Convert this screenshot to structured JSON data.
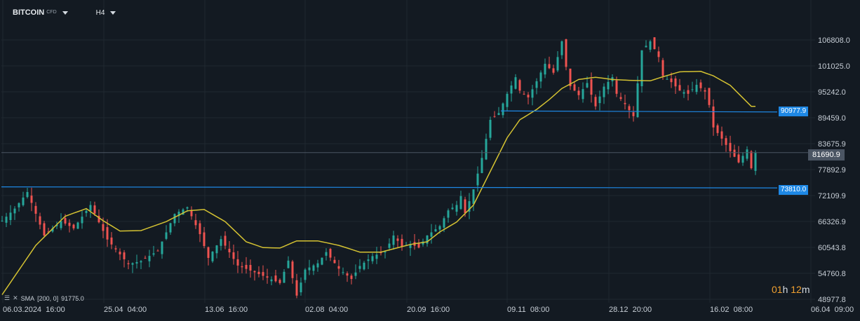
{
  "toolbar": {
    "symbol": "BITCOIN",
    "symbol_type": "CFD",
    "timeframe": "H4"
  },
  "indicator": {
    "label": "SMA",
    "params": "[200,  0]",
    "value": "91775.0"
  },
  "countdown": {
    "hours": "01",
    "hours_unit": "h",
    "minutes": "12",
    "minutes_unit": "m"
  },
  "horizontal_lines": [
    {
      "value": "90977.9",
      "color": "#1e88e5"
    },
    {
      "value": "73810.0",
      "color": "#1e88e5"
    }
  ],
  "current_price": {
    "value": "81690.9",
    "color": "#4b5563"
  },
  "colors": {
    "up": "#26a69a",
    "down": "#ef5350",
    "sma": "#d4c232",
    "background": "#131a22",
    "line": "#1e88e5"
  },
  "chart_data": {
    "type": "candlestick",
    "y_ticks": [
      "106808.0",
      "101025.0",
      "95242.0",
      "89459.0",
      "83675.9",
      "77892.9",
      "72109.9",
      "66326.9",
      "60543.8",
      "54760.8",
      "48977.8"
    ],
    "x_ticks": [
      "06.03.2024  16:00",
      "25.04  04:00",
      "13.06  16:00",
      "02.08  04:00",
      "20.09  16:00",
      "09.11  08:00",
      "28.12  20:00",
      "16.02  08:00",
      "06.04  09:00"
    ],
    "ylim": [
      48977.8,
      106808.0
    ],
    "price_path": [
      [
        0,
        66500
      ],
      [
        3,
        69200
      ],
      [
        6,
        72900
      ],
      [
        10,
        63200
      ],
      [
        14,
        66400
      ],
      [
        17,
        64800
      ],
      [
        21,
        70000
      ],
      [
        25,
        62300
      ],
      [
        30,
        56800
      ],
      [
        33,
        57500
      ],
      [
        37,
        59800
      ],
      [
        41,
        68000
      ],
      [
        44,
        69500
      ],
      [
        47,
        63500
      ],
      [
        49,
        58200
      ],
      [
        52,
        62400
      ],
      [
        56,
        56500
      ],
      [
        60,
        55000
      ],
      [
        63,
        53800
      ],
      [
        66,
        52600
      ],
      [
        68,
        57600
      ],
      [
        70,
        49800
      ],
      [
        72,
        55600
      ],
      [
        75,
        57000
      ],
      [
        77,
        59500
      ],
      [
        80,
        55800
      ],
      [
        83,
        53500
      ],
      [
        85,
        56400
      ],
      [
        88,
        58600
      ],
      [
        91,
        59600
      ],
      [
        93,
        63200
      ],
      [
        95,
        60800
      ],
      [
        97,
        61300
      ],
      [
        99,
        60500
      ],
      [
        101,
        63200
      ],
      [
        104,
        65300
      ],
      [
        106,
        68800
      ],
      [
        108,
        70000
      ],
      [
        109,
        72000
      ],
      [
        110,
        68200
      ],
      [
        112,
        73500
      ],
      [
        114,
        80500
      ],
      [
        116,
        89000
      ],
      [
        118,
        90500
      ],
      [
        120,
        94800
      ],
      [
        122,
        98500
      ],
      [
        123,
        95500
      ],
      [
        125,
        94000
      ],
      [
        127,
        97600
      ],
      [
        129,
        101500
      ],
      [
        131,
        99500
      ],
      [
        133,
        106500
      ],
      [
        134,
        100800
      ],
      [
        135,
        96500
      ],
      [
        137,
        94500
      ],
      [
        139,
        97200
      ],
      [
        141,
        92000
      ],
      [
        143,
        96400
      ],
      [
        145,
        98500
      ],
      [
        146,
        94800
      ],
      [
        148,
        92500
      ],
      [
        150,
        89800
      ],
      [
        152,
        104500
      ],
      [
        154,
        106500
      ],
      [
        156,
        103000
      ],
      [
        157,
        98800
      ],
      [
        159,
        97400
      ],
      [
        161,
        95500
      ],
      [
        163,
        94800
      ],
      [
        165,
        96800
      ],
      [
        167,
        95300
      ],
      [
        168,
        92300
      ],
      [
        169,
        87300
      ],
      [
        171,
        84800
      ],
      [
        173,
        82000
      ],
      [
        175,
        79500
      ],
      [
        177,
        82400
      ],
      [
        178,
        78200
      ],
      [
        179,
        81690.9
      ]
    ],
    "sma200_path": [
      [
        0,
        50000
      ],
      [
        8,
        61000
      ],
      [
        15,
        67500
      ],
      [
        20,
        69200
      ],
      [
        24,
        66500
      ],
      [
        28,
        64200
      ],
      [
        33,
        64300
      ],
      [
        39,
        66300
      ],
      [
        44,
        68700
      ],
      [
        48,
        69000
      ],
      [
        53,
        66300
      ],
      [
        58,
        61800
      ],
      [
        62,
        60500
      ],
      [
        66,
        60400
      ],
      [
        70,
        62000
      ],
      [
        75,
        62000
      ],
      [
        80,
        61000
      ],
      [
        85,
        59500
      ],
      [
        90,
        59500
      ],
      [
        97,
        61200
      ],
      [
        101,
        61800
      ],
      [
        104,
        64000
      ],
      [
        108,
        66200
      ],
      [
        112,
        70000
      ],
      [
        116,
        77500
      ],
      [
        120,
        85000
      ],
      [
        123,
        89000
      ],
      [
        127,
        91300
      ],
      [
        130,
        93500
      ],
      [
        133,
        96000
      ],
      [
        137,
        98000
      ],
      [
        141,
        98500
      ],
      [
        145,
        98000
      ],
      [
        149,
        97800
      ],
      [
        154,
        97700
      ],
      [
        157,
        98600
      ],
      [
        161,
        99700
      ],
      [
        166,
        99800
      ],
      [
        169,
        98800
      ],
      [
        173,
        96700
      ],
      [
        178,
        92000
      ]
    ],
    "x_units": "bars (1 unit = 24 H4 candles)"
  }
}
